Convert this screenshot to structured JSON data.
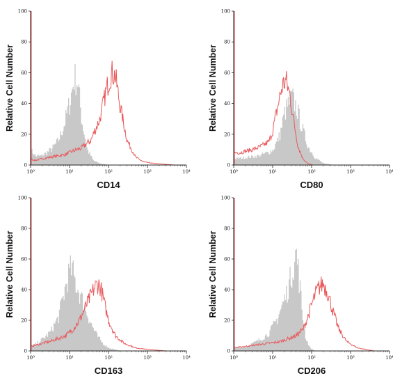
{
  "colors": {
    "isotype_fill": "#c8c8c8",
    "stain_line": "#e8585b",
    "axis": "#222222"
  },
  "chart_data": [
    {
      "type": "area",
      "xlabel": "CD14",
      "ylabel": "Relative Cell Number",
      "xscale": "log",
      "xlim": [
        1,
        10000
      ],
      "ylim": [
        0,
        100
      ],
      "yticks": [
        0,
        20,
        40,
        60,
        80,
        100
      ],
      "xticks": [
        "10⁰",
        "10¹",
        "10²",
        "10³",
        "10⁴"
      ],
      "series": [
        {
          "style": "filled-gray",
          "x": [
            1,
            1.3,
            1.8,
            2.5,
            3.5,
            5,
            7,
            10,
            13,
            16,
            20,
            28,
            40,
            60,
            100
          ],
          "y": [
            10,
            6,
            6,
            8,
            11,
            16,
            26,
            42,
            58,
            55,
            30,
            10,
            3,
            1,
            0
          ]
        },
        {
          "style": "red-line",
          "x": [
            1,
            1.3,
            2,
            3,
            5,
            8,
            12,
            20,
            35,
            60,
            90,
            120,
            150,
            200,
            300,
            500,
            800,
            1500,
            5000,
            10000
          ],
          "y": [
            4,
            3,
            4,
            5,
            6,
            7,
            9,
            11,
            16,
            30,
            50,
            60,
            58,
            38,
            16,
            5,
            2,
            1,
            0,
            0
          ]
        }
      ]
    },
    {
      "type": "area",
      "xlabel": "CD80",
      "ylabel": "Relative Cell Number",
      "xscale": "log",
      "xlim": [
        1,
        10000
      ],
      "ylim": [
        0,
        100
      ],
      "yticks": [
        0,
        20,
        40,
        60,
        80,
        100
      ],
      "xticks": [
        "10⁰",
        "10¹",
        "10²",
        "10³",
        "10⁴"
      ],
      "series": [
        {
          "style": "filled-gray",
          "x": [
            1,
            2,
            4,
            7,
            10,
            15,
            20,
            30,
            40,
            55,
            80,
            120,
            200,
            400
          ],
          "y": [
            4,
            5,
            6,
            8,
            10,
            20,
            35,
            45,
            38,
            25,
            12,
            5,
            1,
            0
          ]
        },
        {
          "style": "red-line",
          "x": [
            1,
            1.5,
            2,
            3,
            5,
            8,
            10,
            14,
            18,
            22,
            28,
            35,
            45,
            60,
            80,
            110,
            200,
            10000
          ],
          "y": [
            8,
            8,
            9,
            10,
            12,
            15,
            22,
            40,
            52,
            55,
            45,
            28,
            12,
            4,
            1,
            0,
            0,
            0
          ]
        }
      ]
    },
    {
      "type": "area",
      "xlabel": "CD163",
      "ylabel": "Relative Cell Number",
      "xscale": "log",
      "xlim": [
        1,
        10000
      ],
      "ylim": [
        0,
        100
      ],
      "yticks": [
        0,
        20,
        40,
        60,
        80,
        100
      ],
      "xticks": [
        "10⁰",
        "10¹",
        "10²",
        "10³",
        "10⁴"
      ],
      "series": [
        {
          "style": "filled-gray",
          "x": [
            1,
            1.4,
            2,
            3,
            5,
            7,
            9,
            11,
            14,
            18,
            25,
            35,
            50,
            70,
            100,
            200
          ],
          "y": [
            3,
            5,
            8,
            12,
            22,
            38,
            50,
            55,
            45,
            38,
            28,
            18,
            10,
            5,
            2,
            0
          ]
        },
        {
          "style": "red-line",
          "x": [
            1,
            1.5,
            2,
            3,
            5,
            8,
            12,
            18,
            25,
            35,
            45,
            55,
            65,
            80,
            100,
            150,
            250,
            500,
            1000,
            3000,
            10000
          ],
          "y": [
            3,
            4,
            5,
            6,
            8,
            10,
            14,
            20,
            28,
            36,
            42,
            44,
            40,
            30,
            20,
            10,
            5,
            2,
            1,
            0,
            0
          ]
        }
      ]
    },
    {
      "type": "area",
      "xlabel": "CD206",
      "ylabel": "Relative Cell Number",
      "xscale": "log",
      "xlim": [
        1,
        10000
      ],
      "ylim": [
        0,
        100
      ],
      "yticks": [
        0,
        20,
        40,
        60,
        80,
        100
      ],
      "xticks": [
        "10⁰",
        "10¹",
        "10²",
        "10³",
        "10⁴"
      ],
      "series": [
        {
          "style": "filled-gray",
          "x": [
            1,
            2,
            3,
            5,
            8,
            12,
            16,
            22,
            28,
            35,
            40,
            48,
            58,
            70,
            90,
            120,
            200
          ],
          "y": [
            2,
            3,
            5,
            8,
            12,
            20,
            28,
            38,
            48,
            60,
            65,
            45,
            22,
            8,
            2,
            0,
            0
          ]
        },
        {
          "style": "red-line",
          "x": [
            1,
            2,
            4,
            8,
            15,
            25,
            40,
            60,
            80,
            100,
            130,
            160,
            200,
            260,
            350,
            500,
            800,
            1500,
            4000,
            10000
          ],
          "y": [
            2,
            3,
            4,
            5,
            6,
            8,
            10,
            14,
            22,
            30,
            38,
            42,
            44,
            38,
            26,
            14,
            6,
            2,
            0,
            0
          ]
        }
      ]
    }
  ]
}
